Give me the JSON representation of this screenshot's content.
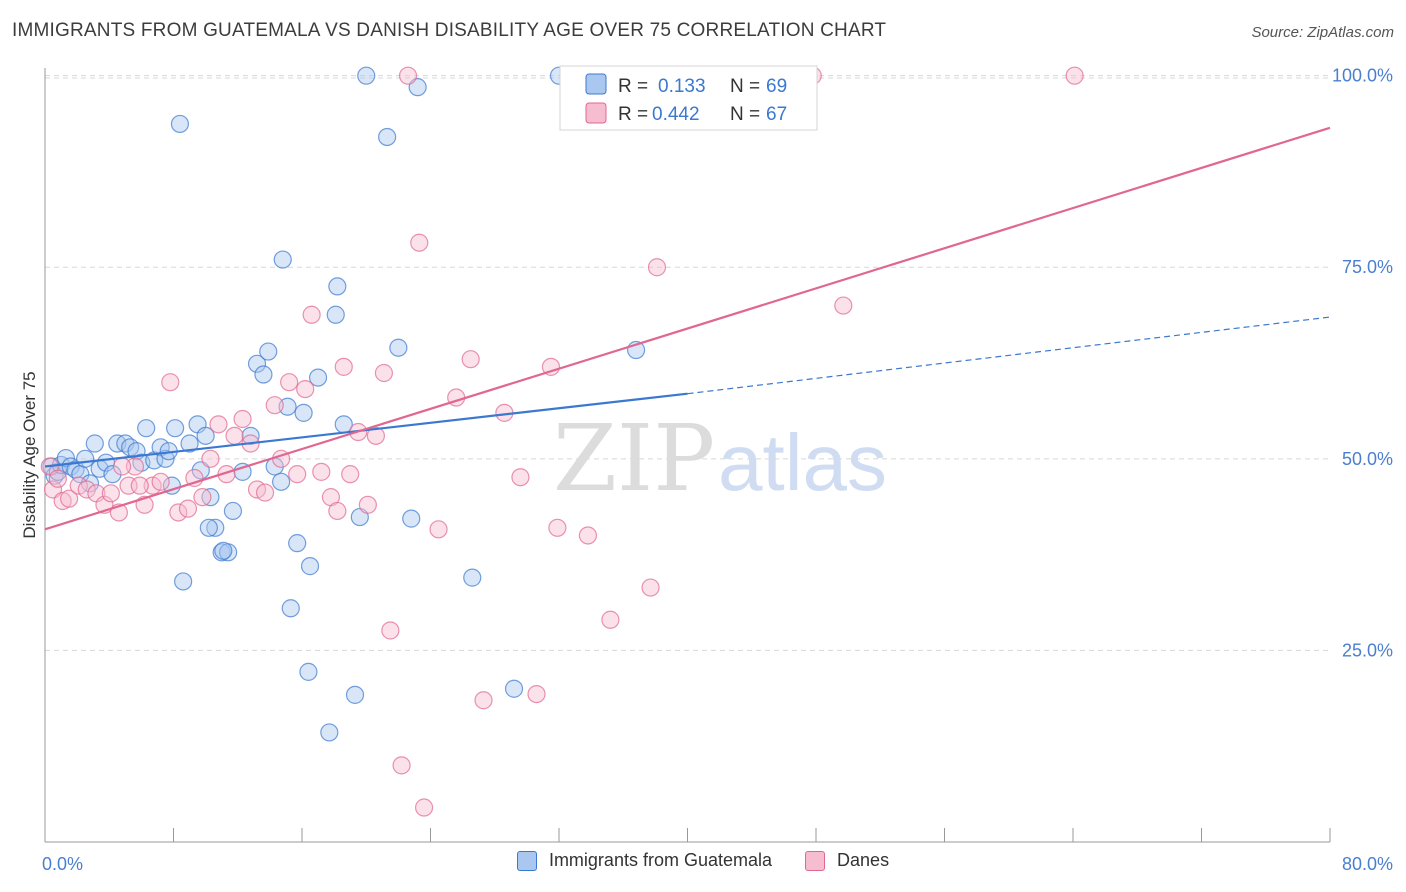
{
  "header": {
    "title": "IMMIGRANTS FROM GUATEMALA VS DANISH DISABILITY AGE OVER 75 CORRELATION CHART",
    "source": "Source: ZipAtlas.com"
  },
  "watermark": {
    "part1": "ZIP",
    "part2": "atlas"
  },
  "colors": {
    "blue": "#3b78d0",
    "blue_fill": "#a9c7ef",
    "pink": "#e0678f",
    "pink_fill": "#f6bdd0",
    "tick_label": "#4a7fd0",
    "grid": "#d8d8d8"
  },
  "chart_data": {
    "type": "scatter",
    "title": "IMMIGRANTS FROM GUATEMALA VS DANISH DISABILITY AGE OVER 75 CORRELATION CHART",
    "xlabel": "",
    "ylabel": "Disability Age Over 75",
    "xlim": [
      0,
      80
    ],
    "ylim": [
      0,
      101
    ],
    "x_tick_labels": [
      "0.0%",
      "80.0%"
    ],
    "y_ticks": [
      25,
      50,
      75,
      100
    ],
    "y_tick_labels": [
      "25.0%",
      "50.0%",
      "75.0%",
      "100.0%"
    ],
    "grid": true,
    "legend_position": "top-center",
    "stats": [
      {
        "r_label": "R =",
        "r_value": "0.133",
        "n_label": "N =",
        "n_value": "69"
      },
      {
        "r_label": "R =",
        "r_value": "0.442",
        "n_label": "N =",
        "n_value": "67"
      }
    ],
    "series": [
      {
        "name": "Immigrants from Guatemala",
        "color": "#3b78d0",
        "trend": {
          "x0": 0,
          "y0": 49,
          "x1": 40,
          "y1": 58.5,
          "dashed_to_x": 80,
          "dashed_to_y": 68.5
        },
        "points": [
          [
            0.4,
            49
          ],
          [
            0.6,
            47.8
          ],
          [
            0.8,
            48.3
          ],
          [
            1.0,
            49.2
          ],
          [
            1.3,
            50.1
          ],
          [
            1.6,
            49.0
          ],
          [
            1.9,
            48.6
          ],
          [
            2.2,
            48.0
          ],
          [
            2.5,
            50.0
          ],
          [
            2.8,
            46.8
          ],
          [
            3.1,
            52.0
          ],
          [
            3.4,
            48.7
          ],
          [
            3.8,
            49.5
          ],
          [
            4.2,
            48.0
          ],
          [
            4.5,
            52.0
          ],
          [
            5.0,
            52.0
          ],
          [
            5.3,
            51.5
          ],
          [
            5.7,
            51.0
          ],
          [
            6.0,
            49.5
          ],
          [
            6.3,
            54.0
          ],
          [
            6.8,
            49.8
          ],
          [
            7.2,
            51.5
          ],
          [
            7.5,
            50.0
          ],
          [
            7.9,
            46.5
          ],
          [
            8.1,
            54.0
          ],
          [
            8.6,
            34.0
          ],
          [
            9.0,
            52.0
          ],
          [
            9.5,
            54.5
          ],
          [
            9.7,
            48.5
          ],
          [
            10.0,
            53.0
          ],
          [
            10.3,
            45.0
          ],
          [
            10.6,
            41.0
          ],
          [
            11.0,
            37.8
          ],
          [
            11.4,
            37.8
          ],
          [
            11.7,
            43.2
          ],
          [
            12.3,
            48.3
          ],
          [
            12.8,
            53.0
          ],
          [
            13.2,
            62.4
          ],
          [
            13.6,
            61.0
          ],
          [
            13.9,
            64.0
          ],
          [
            14.3,
            49.0
          ],
          [
            14.7,
            47.0
          ],
          [
            15.1,
            56.8
          ],
          [
            15.7,
            39.0
          ],
          [
            16.1,
            56.0
          ],
          [
            16.5,
            36.0
          ],
          [
            17.0,
            60.6
          ],
          [
            17.7,
            14.3
          ],
          [
            18.2,
            72.5
          ],
          [
            18.6,
            54.5
          ],
          [
            19.3,
            19.2
          ],
          [
            19.6,
            42.4
          ],
          [
            20.0,
            100
          ],
          [
            21.3,
            92.0
          ],
          [
            22.0,
            64.5
          ],
          [
            22.8,
            42.2
          ],
          [
            23.2,
            98.5
          ],
          [
            26.6,
            34.5
          ],
          [
            29.2,
            20.0
          ],
          [
            8.4,
            93.7
          ],
          [
            14.8,
            76.0
          ],
          [
            18.1,
            68.8
          ],
          [
            32.0,
            100
          ],
          [
            36.8,
            64.2
          ],
          [
            15.3,
            30.5
          ],
          [
            16.4,
            22.2
          ],
          [
            10.2,
            41
          ],
          [
            11.1,
            38
          ],
          [
            7.7,
            51
          ]
        ]
      },
      {
        "name": "Danes",
        "color": "#e0678f",
        "trend": {
          "x0": 0,
          "y0": 40.8,
          "x1": 80,
          "y1": 93.2
        },
        "points": [
          [
            0.3,
            49
          ],
          [
            0.5,
            46.0
          ],
          [
            0.8,
            47.4
          ],
          [
            1.1,
            44.5
          ],
          [
            1.5,
            44.8
          ],
          [
            2.1,
            46.5
          ],
          [
            2.6,
            46.0
          ],
          [
            3.2,
            45.5
          ],
          [
            3.7,
            44.0
          ],
          [
            4.1,
            45.5
          ],
          [
            4.6,
            43.0
          ],
          [
            5.2,
            46.5
          ],
          [
            5.6,
            49.0
          ],
          [
            6.2,
            44.0
          ],
          [
            6.7,
            46.5
          ],
          [
            7.2,
            47.0
          ],
          [
            7.8,
            60.0
          ],
          [
            8.3,
            43.0
          ],
          [
            8.9,
            43.5
          ],
          [
            9.3,
            47.5
          ],
          [
            9.8,
            45.0
          ],
          [
            10.3,
            50.0
          ],
          [
            10.8,
            54.5
          ],
          [
            11.3,
            48.0
          ],
          [
            11.8,
            53.0
          ],
          [
            12.3,
            55.2
          ],
          [
            12.8,
            52.0
          ],
          [
            13.2,
            46.0
          ],
          [
            13.7,
            45.6
          ],
          [
            14.3,
            57.0
          ],
          [
            14.7,
            50.0
          ],
          [
            15.2,
            60.0
          ],
          [
            15.7,
            48.0
          ],
          [
            16.2,
            59.1
          ],
          [
            16.6,
            68.8
          ],
          [
            17.2,
            48.3
          ],
          [
            17.8,
            45.0
          ],
          [
            18.2,
            43.2
          ],
          [
            18.6,
            62.0
          ],
          [
            19.0,
            48.0
          ],
          [
            19.5,
            53.5
          ],
          [
            20.1,
            44.0
          ],
          [
            20.6,
            53.0
          ],
          [
            21.1,
            61.2
          ],
          [
            21.5,
            27.6
          ],
          [
            22.2,
            10.0
          ],
          [
            22.6,
            100
          ],
          [
            23.3,
            78.2
          ],
          [
            23.6,
            4.5
          ],
          [
            24.5,
            40.8
          ],
          [
            25.6,
            58.0
          ],
          [
            26.5,
            63.0
          ],
          [
            27.3,
            18.5
          ],
          [
            28.6,
            56.0
          ],
          [
            29.6,
            47.6
          ],
          [
            30.6,
            19.3
          ],
          [
            31.5,
            62.0
          ],
          [
            31.9,
            41.0
          ],
          [
            33.8,
            40.0
          ],
          [
            35.2,
            29.0
          ],
          [
            37.7,
            33.2
          ],
          [
            38.1,
            75.0
          ],
          [
            47.8,
            100
          ],
          [
            49.7,
            70.0
          ],
          [
            64.1,
            100
          ],
          [
            5.9,
            46.5
          ],
          [
            4.8,
            49
          ]
        ]
      }
    ]
  },
  "legend_items": [
    "Immigrants from Guatemala",
    "Danes"
  ]
}
